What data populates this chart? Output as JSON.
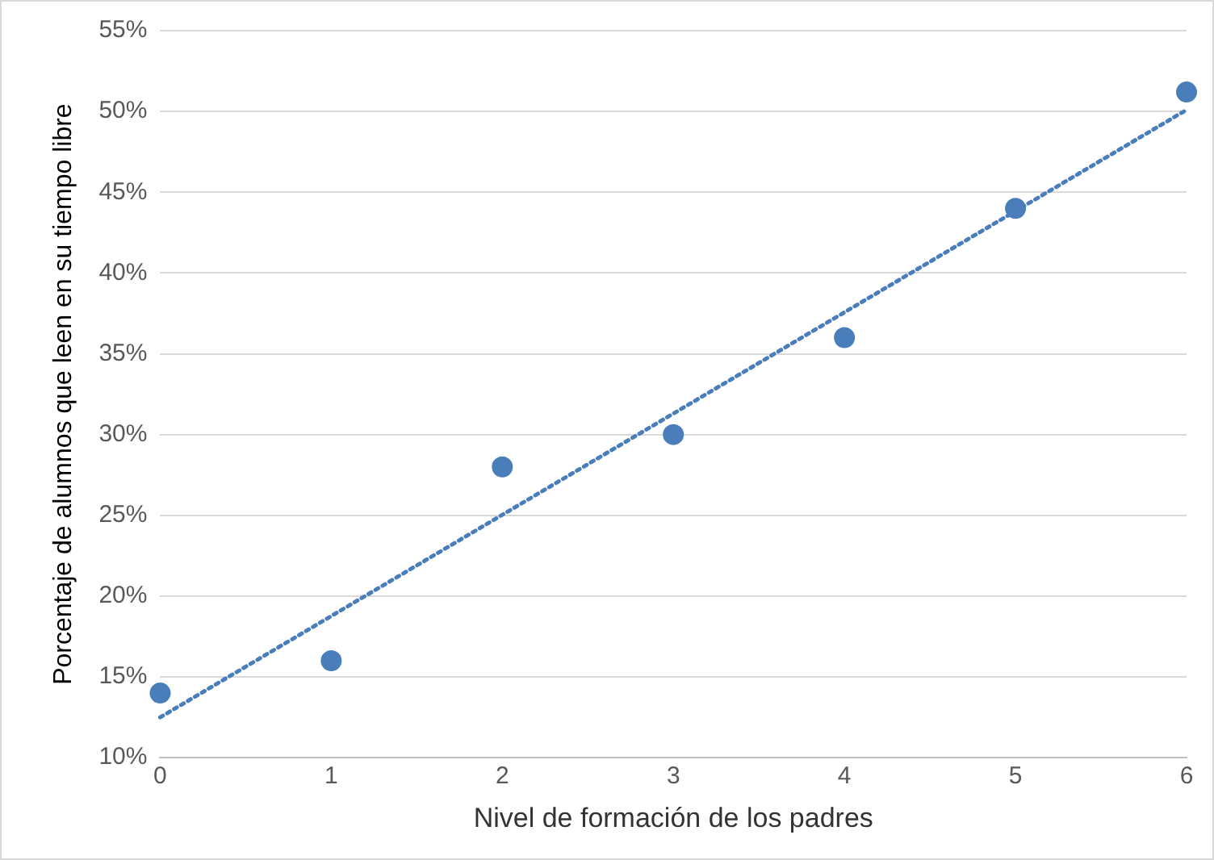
{
  "chart_data": {
    "type": "scatter",
    "xlabel": "Nivel de formación de los padres",
    "ylabel": "Porcentaje de alumnos que leen en su tiempo libre",
    "x": [
      0,
      1,
      2,
      3,
      4,
      5,
      6
    ],
    "series": [
      {
        "color": "#4a7ebb",
        "values": [
          14,
          16,
          28,
          30,
          36,
          44,
          51.2
        ],
        "marker": "circle"
      },
      {
        "type": "line",
        "color": "#4a7ebb",
        "x": [
          0,
          6
        ],
        "values": [
          12.5,
          50.1
        ],
        "line_style": "dotted",
        "marker": "none"
      }
    ],
    "xlim": [
      0,
      6
    ],
    "xticks": [
      0,
      1,
      2,
      3,
      4,
      5,
      6
    ],
    "ylim": [
      10,
      55
    ],
    "yticks": [
      {
        "value": 10,
        "label": "10%"
      },
      {
        "value": 15,
        "label": "15%"
      },
      {
        "value": 20,
        "label": "20%"
      },
      {
        "value": 25,
        "label": "25%"
      },
      {
        "value": 30,
        "label": "30%"
      },
      {
        "value": 35,
        "label": "35%"
      },
      {
        "value": 40,
        "label": "40%"
      },
      {
        "value": 45,
        "label": "45%"
      },
      {
        "value": 50,
        "label": "50%"
      },
      {
        "value": 55,
        "label": "55%"
      }
    ],
    "grid": "y",
    "legend": false
  }
}
